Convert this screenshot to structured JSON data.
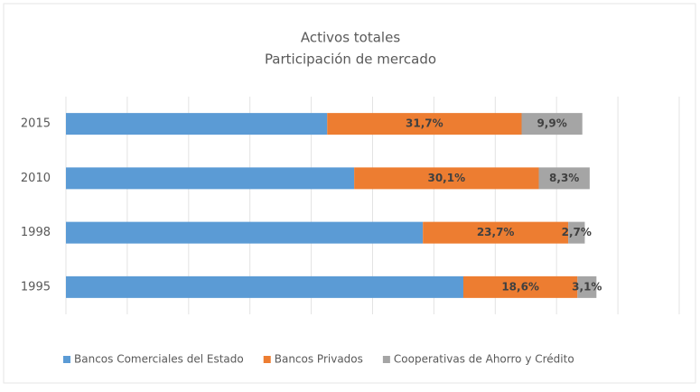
{
  "chart_data": {
    "type": "stacked-barh",
    "title": "Activos totales",
    "subtitle": "Participación de mercado",
    "categories": [
      "2015",
      "2010",
      "1998",
      "1995"
    ],
    "series": [
      {
        "name": "Bancos Comerciales del Estado",
        "color": "#5b9bd5",
        "values": [
          42.6,
          47.0,
          58.2,
          64.8
        ]
      },
      {
        "name": "Bancos Privados",
        "color": "#ed7d31",
        "values": [
          31.7,
          30.1,
          23.7,
          18.6
        ],
        "value_labels": [
          "31,7%",
          "30,1%",
          "23,7%",
          "18,6%"
        ]
      },
      {
        "name": "Cooperativas de Ahorro y Crédito",
        "color": "#a5a5a5",
        "values": [
          9.9,
          8.3,
          2.7,
          3.1
        ],
        "value_labels": [
          "9,9%",
          "8,3%",
          "2,7%",
          "3,1%"
        ]
      }
    ],
    "xlim": [
      0,
      100
    ],
    "xticks": [
      0,
      10,
      20,
      30,
      40,
      50,
      60,
      70,
      80,
      90,
      100
    ],
    "grid": true,
    "legend": "bottom"
  }
}
